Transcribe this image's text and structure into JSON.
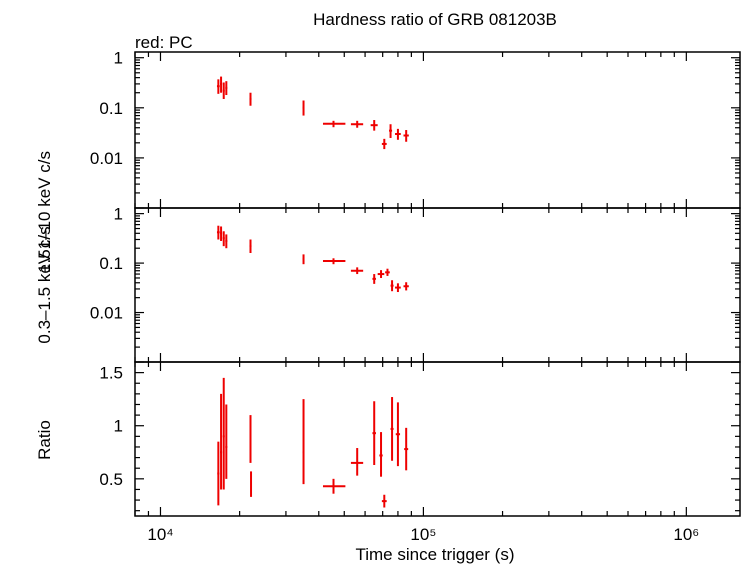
{
  "chart_data": {
    "type": "scatter",
    "title": "Hardness ratio of GRB 081203B",
    "legend_text": "red: PC",
    "xlabel": "Time since trigger (s)",
    "x_scale": "log",
    "xlim": [
      8000,
      1600000
    ],
    "x_tick_labels": [
      "10⁴",
      "10⁵",
      "10⁶"
    ],
    "x_tick_values": [
      10000,
      100000,
      1000000
    ],
    "series_color": "#ee0000",
    "panels": [
      {
        "name": "hard",
        "ylabel": "1.51–10 keV c/s",
        "y_scale": "log",
        "ylim": [
          0.001,
          1.3
        ],
        "y_tick_labels": [
          "1",
          "0.1",
          "0.01"
        ],
        "y_tick_values": [
          1,
          0.1,
          0.01
        ],
        "points": [
          {
            "x": 16600,
            "y": 0.27,
            "xerr": [
              200,
              200
            ],
            "yerr": [
              0.08,
              0.1
            ]
          },
          {
            "x": 17000,
            "y": 0.3,
            "xerr": [
              150,
              150
            ],
            "yerr": [
              0.1,
              0.12
            ]
          },
          {
            "x": 17400,
            "y": 0.22,
            "xerr": [
              150,
              150
            ],
            "yerr": [
              0.07,
              0.1
            ]
          },
          {
            "x": 17800,
            "y": 0.25,
            "xerr": [
              150,
              150
            ],
            "yerr": [
              0.07,
              0.09
            ]
          },
          {
            "x": 22000,
            "y": 0.15,
            "xerr": [
              200,
              200
            ],
            "yerr": [
              0.04,
              0.05
            ]
          },
          {
            "x": 35000,
            "y": 0.1,
            "xerr": [
              300,
              300
            ],
            "yerr": [
              0.03,
              0.04
            ]
          },
          {
            "x": 45500,
            "y": 0.048,
            "xerr": [
              4000,
              5000
            ],
            "yerr": [
              0.007,
              0.007
            ]
          },
          {
            "x": 56000,
            "y": 0.047,
            "xerr": [
              3000,
              3000
            ],
            "yerr": [
              0.007,
              0.008
            ]
          },
          {
            "x": 65000,
            "y": 0.045,
            "xerr": [
              2000,
              2000
            ],
            "yerr": [
              0.01,
              0.012
            ]
          },
          {
            "x": 71000,
            "y": 0.019,
            "xerr": [
              1500,
              1500
            ],
            "yerr": [
              0.004,
              0.005
            ]
          },
          {
            "x": 75000,
            "y": 0.035,
            "xerr": [
              1000,
              1000
            ],
            "yerr": [
              0.01,
              0.012
            ]
          },
          {
            "x": 80000,
            "y": 0.03,
            "xerr": [
              2000,
              2000
            ],
            "yerr": [
              0.007,
              0.008
            ]
          },
          {
            "x": 86000,
            "y": 0.028,
            "xerr": [
              2000,
              2000
            ],
            "yerr": [
              0.007,
              0.008
            ]
          }
        ]
      },
      {
        "name": "soft",
        "ylabel": "0.3–1.5 keV c/s",
        "y_scale": "log",
        "ylim": [
          0.001,
          1.3
        ],
        "y_tick_labels": [
          "1",
          "0.1",
          "0.01"
        ],
        "y_tick_values": [
          1,
          0.1,
          0.01
        ],
        "points": [
          {
            "x": 16600,
            "y": 0.42,
            "xerr": [
              200,
              200
            ],
            "yerr": [
              0.12,
              0.15
            ]
          },
          {
            "x": 17000,
            "y": 0.4,
            "xerr": [
              150,
              150
            ],
            "yerr": [
              0.12,
              0.15
            ]
          },
          {
            "x": 17400,
            "y": 0.32,
            "xerr": [
              150,
              150
            ],
            "yerr": [
              0.1,
              0.12
            ]
          },
          {
            "x": 17800,
            "y": 0.28,
            "xerr": [
              150,
              150
            ],
            "yerr": [
              0.08,
              0.1
            ]
          },
          {
            "x": 22000,
            "y": 0.22,
            "xerr": [
              200,
              200
            ],
            "yerr": [
              0.06,
              0.08
            ]
          },
          {
            "x": 35000,
            "y": 0.12,
            "xerr": [
              300,
              300
            ],
            "yerr": [
              0.025,
              0.03
            ]
          },
          {
            "x": 45500,
            "y": 0.11,
            "xerr": [
              4000,
              5000
            ],
            "yerr": [
              0.015,
              0.015
            ]
          },
          {
            "x": 56000,
            "y": 0.07,
            "xerr": [
              3000,
              3000
            ],
            "yerr": [
              0.01,
              0.012
            ]
          },
          {
            "x": 65000,
            "y": 0.048,
            "xerr": [
              1000,
              1000
            ],
            "yerr": [
              0.01,
              0.012
            ]
          },
          {
            "x": 69000,
            "y": 0.06,
            "xerr": [
              2000,
              2000
            ],
            "yerr": [
              0.01,
              0.012
            ]
          },
          {
            "x": 73000,
            "y": 0.065,
            "xerr": [
              1500,
              1500
            ],
            "yerr": [
              0.01,
              0.012
            ]
          },
          {
            "x": 76000,
            "y": 0.035,
            "xerr": [
              1000,
              1000
            ],
            "yerr": [
              0.008,
              0.01
            ]
          },
          {
            "x": 80000,
            "y": 0.032,
            "xerr": [
              2000,
              2000
            ],
            "yerr": [
              0.006,
              0.007
            ]
          },
          {
            "x": 86000,
            "y": 0.034,
            "xerr": [
              2000,
              2000
            ],
            "yerr": [
              0.006,
              0.007
            ]
          }
        ]
      },
      {
        "name": "ratio",
        "ylabel": "Ratio",
        "y_scale": "linear",
        "ylim": [
          0.15,
          1.6
        ],
        "y_tick_labels": [
          "1.5",
          "1",
          "0.5"
        ],
        "y_tick_values": [
          1.5,
          1,
          0.5
        ],
        "points": [
          {
            "x": 16600,
            "y": 0.55,
            "xerr": [
              150,
              150
            ],
            "yerr": [
              0.3,
              0.3
            ]
          },
          {
            "x": 17000,
            "y": 0.75,
            "xerr": [
              150,
              150
            ],
            "yerr": [
              0.35,
              0.55
            ]
          },
          {
            "x": 17400,
            "y": 0.9,
            "xerr": [
              150,
              150
            ],
            "yerr": [
              0.5,
              0.55
            ]
          },
          {
            "x": 17800,
            "y": 0.8,
            "xerr": [
              150,
              150
            ],
            "yerr": [
              0.3,
              0.4
            ]
          },
          {
            "x": 22000,
            "y": 0.85,
            "xerr": [
              150,
              150
            ],
            "yerr": [
              0.2,
              0.25
            ]
          },
          {
            "x": 22100,
            "y": 0.45,
            "xerr": [
              100,
              100
            ],
            "yerr": [
              0.12,
              0.12
            ]
          },
          {
            "x": 35000,
            "y": 0.75,
            "xerr": [
              300,
              300
            ],
            "yerr": [
              0.3,
              0.5
            ]
          },
          {
            "x": 45500,
            "y": 0.43,
            "xerr": [
              4000,
              5000
            ],
            "yerr": [
              0.07,
              0.07
            ]
          },
          {
            "x": 56000,
            "y": 0.65,
            "xerr": [
              3000,
              3000
            ],
            "yerr": [
              0.12,
              0.14
            ]
          },
          {
            "x": 65000,
            "y": 0.93,
            "xerr": [
              1000,
              1000
            ],
            "yerr": [
              0.3,
              0.3
            ]
          },
          {
            "x": 69000,
            "y": 0.72,
            "xerr": [
              1000,
              1000
            ],
            "yerr": [
              0.2,
              0.22
            ]
          },
          {
            "x": 71000,
            "y": 0.29,
            "xerr": [
              1500,
              1500
            ],
            "yerr": [
              0.06,
              0.06
            ]
          },
          {
            "x": 76000,
            "y": 0.97,
            "xerr": [
              1000,
              1000
            ],
            "yerr": [
              0.3,
              0.3
            ]
          },
          {
            "x": 80000,
            "y": 0.92,
            "xerr": [
              1500,
              1500
            ],
            "yerr": [
              0.3,
              0.3
            ]
          },
          {
            "x": 86000,
            "y": 0.78,
            "xerr": [
              1500,
              1500
            ],
            "yerr": [
              0.2,
              0.2
            ]
          }
        ]
      }
    ]
  }
}
